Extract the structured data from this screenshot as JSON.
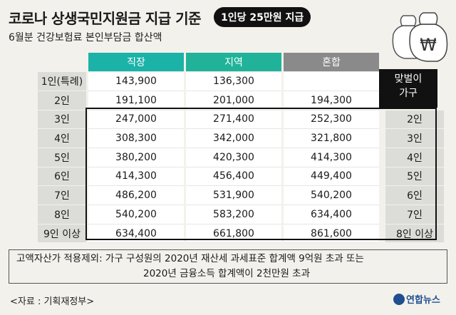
{
  "title": "코로나 상생국민지원금 지급 기준",
  "badge": "1인당 25만원 지급",
  "subtitle": "6월분 건강보험료 본인부담금 합산액",
  "bag_icon": "money-bag-won-icon",
  "headers": [
    "직장",
    "지역",
    "혼합"
  ],
  "dual_label": [
    "맞벌이",
    "가구"
  ],
  "rows": [
    {
      "label": "1인(특례)",
      "v": [
        "143,900",
        "136,300",
        ""
      ],
      "side": ""
    },
    {
      "label": "2인",
      "v": [
        "191,100",
        "201,000",
        "194,300"
      ],
      "side": ""
    },
    {
      "label": "3인",
      "v": [
        "247,000",
        "271,400",
        "252,300"
      ],
      "side": "2인"
    },
    {
      "label": "4인",
      "v": [
        "308,300",
        "342,000",
        "321,800"
      ],
      "side": "3인"
    },
    {
      "label": "5인",
      "v": [
        "380,200",
        "420,300",
        "414,300"
      ],
      "side": "4인"
    },
    {
      "label": "6인",
      "v": [
        "414,300",
        "456,400",
        "449,400"
      ],
      "side": "5인"
    },
    {
      "label": "7인",
      "v": [
        "486,200",
        "531,900",
        "540,200"
      ],
      "side": "6인"
    },
    {
      "label": "8인",
      "v": [
        "540,200",
        "583,200",
        "634,400"
      ],
      "side": "7인"
    },
    {
      "label": "9인 이상",
      "v": [
        "634,400",
        "661,800",
        "861,600"
      ],
      "side": "8인 이상"
    }
  ],
  "note": {
    "line1": "고액자산가 적용제외: 가구 구성원의 2020년 재산세 과세표준 합계액 9억원 초과 또는",
    "line2": "2020년 금융소득 합계액이 2천만원 초과"
  },
  "source": "<자료 : 기획재정부>",
  "logo": "연합뉴스",
  "colors": {
    "work": "#1bb2a7",
    "region": "#20b399",
    "mixed": "#8a8a8a"
  }
}
